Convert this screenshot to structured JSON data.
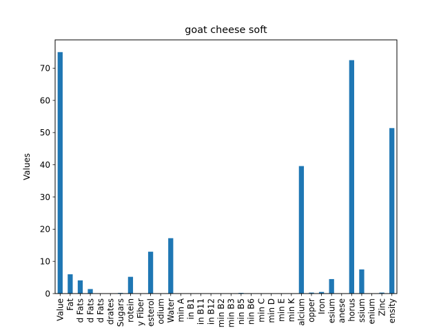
{
  "chart_data": {
    "type": "bar",
    "title": "goat cheese soft",
    "xlabel": "",
    "ylabel": "Values",
    "ylim": [
      0,
      78.8
    ],
    "yticks": [
      0,
      10,
      20,
      30,
      40,
      50,
      60,
      70
    ],
    "grid": false,
    "legend": "none",
    "bar_color": "#1f77b4",
    "categories": [
      "Value",
      "Fat",
      "d Fats",
      "d Fats",
      "d Fats",
      "drates",
      "Sugars",
      "rotein",
      "y Fiber",
      "esterol",
      "odium",
      "Water",
      "min A",
      "in B1",
      "in B11",
      "in B12",
      "min B2",
      "min B3",
      "nin B5",
      "nin B6",
      "min C",
      "min D",
      "min E",
      "min K",
      "alcium",
      "opper",
      "Iron",
      "esium",
      "anese",
      "horus",
      "ssium",
      "enium",
      "Zinc",
      "ensity"
    ],
    "values": [
      75,
      6,
      4.1,
      1.4,
      0,
      0,
      0.2,
      5.2,
      0,
      13,
      0,
      17.2,
      0,
      0,
      0,
      0,
      0,
      0,
      0.2,
      0.1,
      0,
      0,
      0,
      0,
      39.6,
      0.3,
      0.5,
      4.5,
      0,
      72.5,
      7.5,
      0,
      0.3,
      51.4
    ]
  }
}
